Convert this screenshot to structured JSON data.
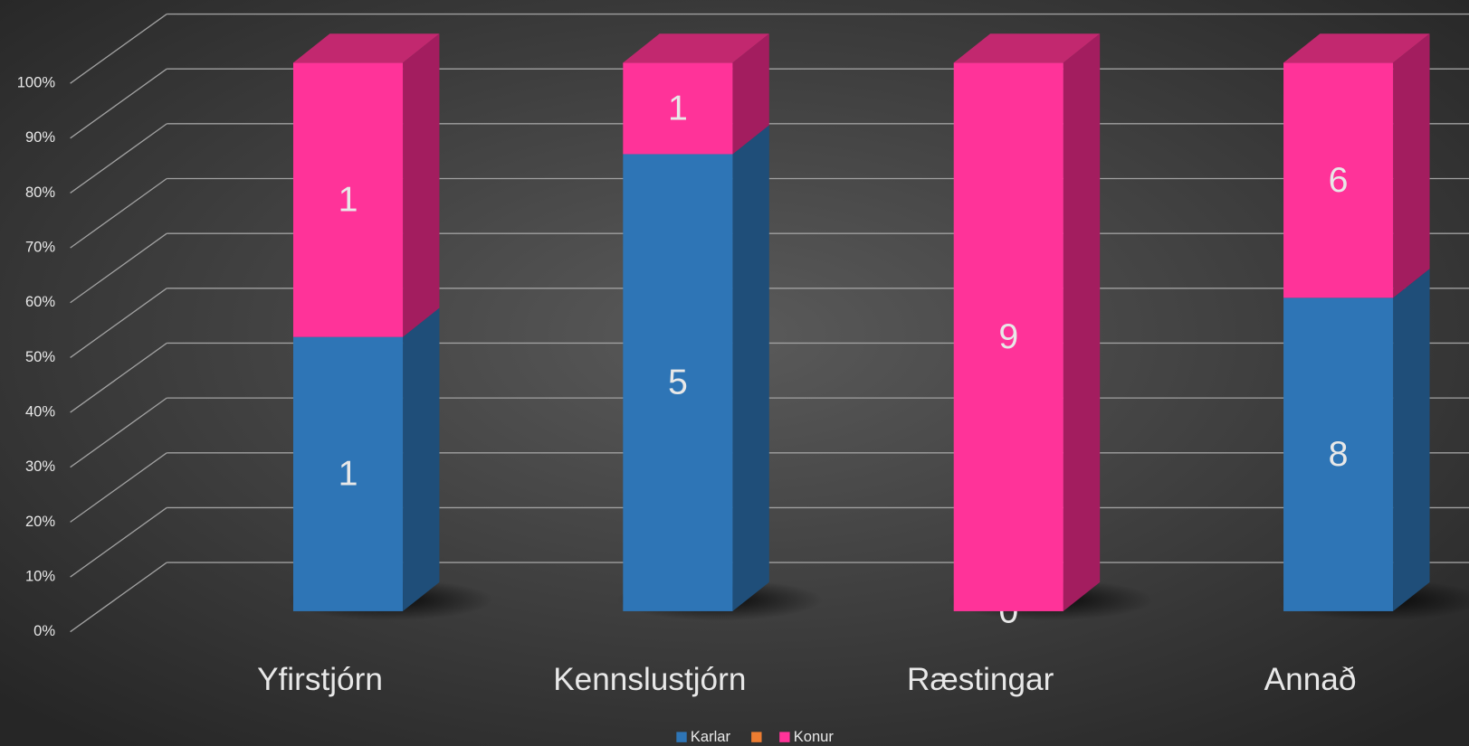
{
  "chart_data": {
    "type": "bar",
    "stacking": "percent",
    "categories": [
      "Yfirstjórn",
      "Kennslustjórn",
      "Ræstingar",
      "Annað"
    ],
    "series": [
      {
        "name": "Karlar",
        "color": "#2e75b6",
        "values": [
          1,
          5,
          0,
          8
        ]
      },
      {
        "name": null,
        "color": "#ed7d31",
        "values": [
          null,
          null,
          null,
          null
        ]
      },
      {
        "name": "Konur",
        "color": "#ff3399",
        "values": [
          1,
          1,
          9,
          6
        ]
      }
    ],
    "ylim": [
      0,
      100
    ],
    "yticks": [
      {
        "value": 0,
        "label": "0%"
      },
      {
        "value": 10,
        "label": "10%"
      },
      {
        "value": 20,
        "label": "20%"
      },
      {
        "value": 30,
        "label": "30%"
      },
      {
        "value": 40,
        "label": "40%"
      },
      {
        "value": 50,
        "label": "50%"
      },
      {
        "value": 60,
        "label": "60%"
      },
      {
        "value": 70,
        "label": "70%"
      },
      {
        "value": 80,
        "label": "80%"
      },
      {
        "value": 90,
        "label": "90%"
      },
      {
        "value": 100,
        "label": "100%"
      }
    ],
    "grid": true,
    "legend": "bottom"
  }
}
